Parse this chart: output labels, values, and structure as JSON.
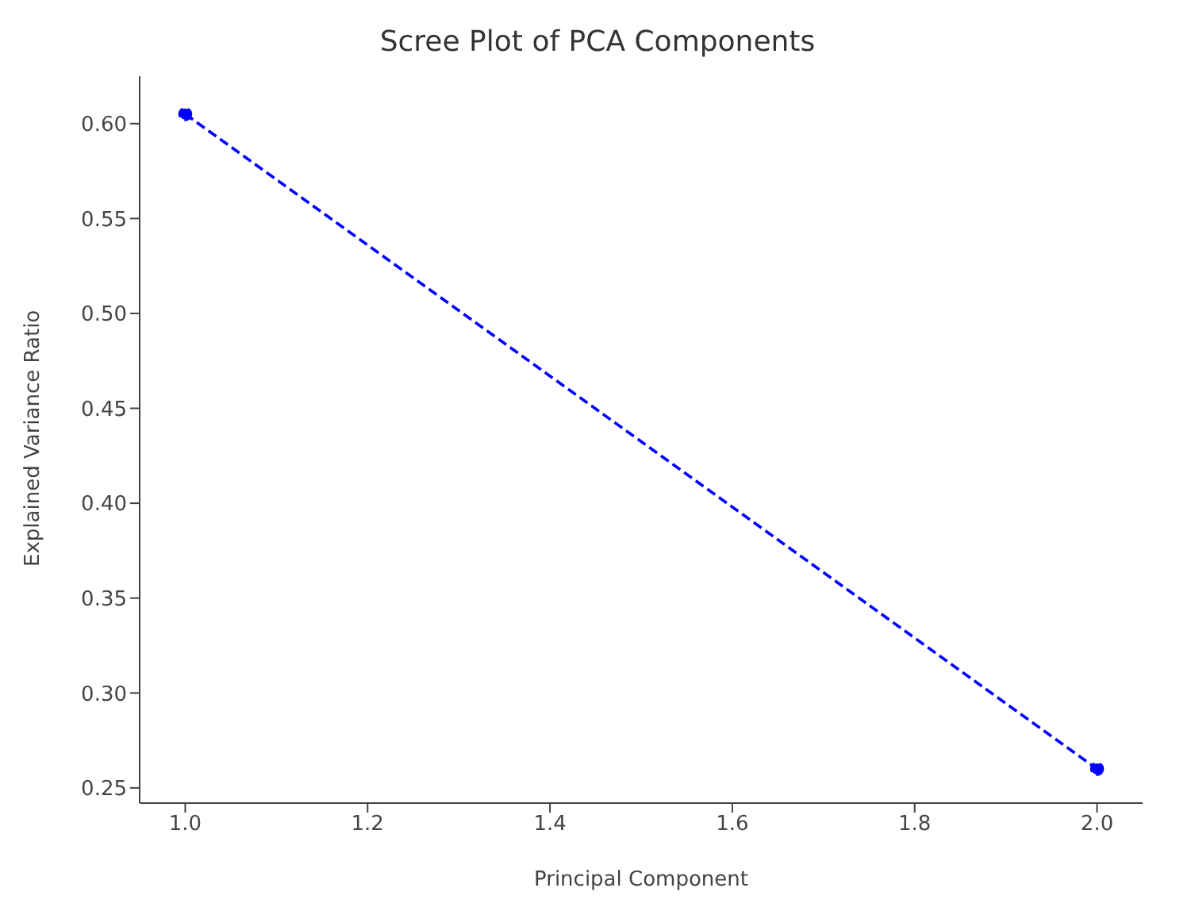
{
  "chart_data": {
    "type": "line",
    "title": "Scree Plot of PCA Components",
    "xlabel": "Principal Component",
    "ylabel": "Explained Variance Ratio",
    "x": [
      1,
      2
    ],
    "series": [
      {
        "color": "#0000ff",
        "values": [
          0.605,
          0.26
        ]
      }
    ],
    "xlim": [
      0.95,
      2.05
    ],
    "ylim": [
      0.242,
      0.625
    ],
    "xticks": [
      {
        "value": 1,
        "label": "1.0"
      },
      {
        "value": 1.2,
        "label": "1.2"
      },
      {
        "value": 1.4,
        "label": "1.4"
      },
      {
        "value": 1.6,
        "label": "1.6"
      },
      {
        "value": 1.8,
        "label": "1.8"
      },
      {
        "value": 2,
        "label": "2.0"
      }
    ],
    "yticks": [
      {
        "value": 0.25,
        "label": "0.25"
      },
      {
        "value": 0.3,
        "label": "0.30"
      },
      {
        "value": 0.35,
        "label": "0.35"
      },
      {
        "value": 0.4,
        "label": "0.40"
      },
      {
        "value": 0.45,
        "label": "0.45"
      },
      {
        "value": 0.5,
        "label": "0.50"
      },
      {
        "value": 0.55,
        "label": "0.55"
      },
      {
        "value": 0.6,
        "label": "0.60"
      }
    ],
    "marker": "circle",
    "line_style": "dashed",
    "grid": false,
    "legend": false
  }
}
